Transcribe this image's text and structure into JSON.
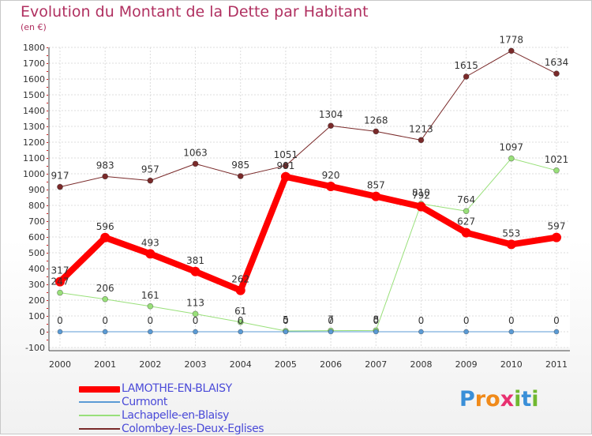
{
  "chart_data": {
    "type": "line",
    "title": "Evolution du Montant de la Dette par Habitant",
    "unit": "(en €)",
    "x": [
      "2000",
      "2001",
      "2002",
      "2003",
      "2004",
      "2005",
      "2006",
      "2007",
      "2008",
      "2009",
      "2010",
      "2011"
    ],
    "ylim": [
      -100,
      1800
    ],
    "yticks": [
      -100,
      0,
      100,
      200,
      300,
      400,
      500,
      600,
      700,
      800,
      900,
      1000,
      1100,
      1200,
      1300,
      1400,
      1500,
      1600,
      1700,
      1800
    ],
    "grid": true,
    "legend_position": "bottom-left",
    "series": [
      {
        "name": "LAMOTHE-EN-BLAISY",
        "color": "#ff0000",
        "values": [
          317,
          596,
          493,
          381,
          262,
          981,
          920,
          857,
          792,
          627,
          553,
          597
        ]
      },
      {
        "name": "Curmont",
        "color": "#5b9bd5",
        "values": [
          0,
          0,
          0,
          0,
          0,
          0,
          0,
          0,
          0,
          0,
          0,
          0
        ]
      },
      {
        "name": "Lachapelle-en-Blaisy",
        "color": "#99e07a",
        "values": [
          247,
          206,
          161,
          113,
          61,
          5,
          7,
          8,
          810,
          764,
          1097,
          1021
        ]
      },
      {
        "name": "Colombey-les-Deux-Eglises",
        "color": "#7a2a2a",
        "values": [
          917,
          983,
          957,
          1063,
          985,
          1051,
          1304,
          1268,
          1213,
          1615,
          1778,
          1634
        ]
      }
    ]
  },
  "logo": {
    "letters": [
      "P",
      "r",
      "o",
      "x",
      "i",
      "t",
      "i"
    ],
    "colors": [
      "#3a8fd8",
      "#f08a1a",
      "#f08a1a",
      "#e83070",
      "#70b830",
      "#3a8fd8",
      "#70b830"
    ]
  }
}
